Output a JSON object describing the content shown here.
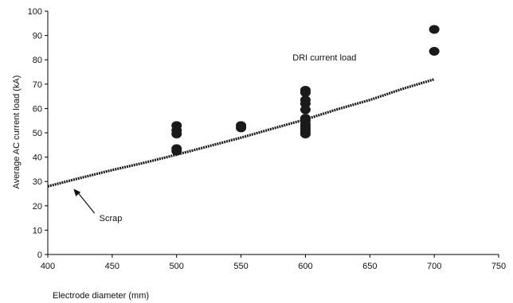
{
  "chart_data": {
    "type": "scatter",
    "title": "",
    "xlabel": "Electrode diameter (mm)",
    "ylabel": "Average AC current load (kA)",
    "xlim": [
      400,
      750
    ],
    "ylim": [
      0,
      100
    ],
    "xticks": [
      400,
      450,
      500,
      550,
      600,
      650,
      700,
      750
    ],
    "yticks": [
      0,
      10,
      20,
      30,
      40,
      50,
      60,
      70,
      80,
      90,
      100
    ],
    "grid": false,
    "series": [
      {
        "type": "scatter",
        "points": [
          {
            "x": 500,
            "y": 53
          },
          {
            "x": 500,
            "y": 51
          },
          {
            "x": 500,
            "y": 49.5
          },
          {
            "x": 500,
            "y": 43.5
          },
          {
            "x": 500,
            "y": 42.5
          },
          {
            "x": 550,
            "y": 53
          },
          {
            "x": 550,
            "y": 52
          },
          {
            "x": 600,
            "y": 67.5
          },
          {
            "x": 600,
            "y": 66.5
          },
          {
            "x": 600,
            "y": 63.5
          },
          {
            "x": 600,
            "y": 62
          },
          {
            "x": 600,
            "y": 59.5
          },
          {
            "x": 600,
            "y": 56
          },
          {
            "x": 600,
            "y": 55
          },
          {
            "x": 600,
            "y": 53.5
          },
          {
            "x": 600,
            "y": 52.5
          },
          {
            "x": 600,
            "y": 51.5
          },
          {
            "x": 600,
            "y": 50.5
          },
          {
            "x": 600,
            "y": 49.5
          },
          {
            "x": 700,
            "y": 92.5
          },
          {
            "x": 700,
            "y": 83.5
          }
        ]
      },
      {
        "type": "line",
        "points": [
          {
            "x": 400,
            "y": 28
          },
          {
            "x": 425,
            "y": 31.4
          },
          {
            "x": 450,
            "y": 34.7
          },
          {
            "x": 475,
            "y": 37.7
          },
          {
            "x": 500,
            "y": 41
          },
          {
            "x": 525,
            "y": 44.5
          },
          {
            "x": 550,
            "y": 48
          },
          {
            "x": 575,
            "y": 51.8
          },
          {
            "x": 600,
            "y": 55.5
          },
          {
            "x": 625,
            "y": 59.7
          },
          {
            "x": 650,
            "y": 63.5
          },
          {
            "x": 675,
            "y": 68
          },
          {
            "x": 700,
            "y": 72
          }
        ]
      }
    ],
    "annotations": [
      {
        "text": "DRI current load",
        "x": 590,
        "y": 81
      },
      {
        "text": "Scrap",
        "x": 440,
        "y": 15,
        "arrow_to": {
          "x": 420,
          "y": 27
        }
      }
    ],
    "colors": {
      "markers": "#1a1a1a",
      "line": "#1a1a1a",
      "axes": "#000000"
    }
  }
}
